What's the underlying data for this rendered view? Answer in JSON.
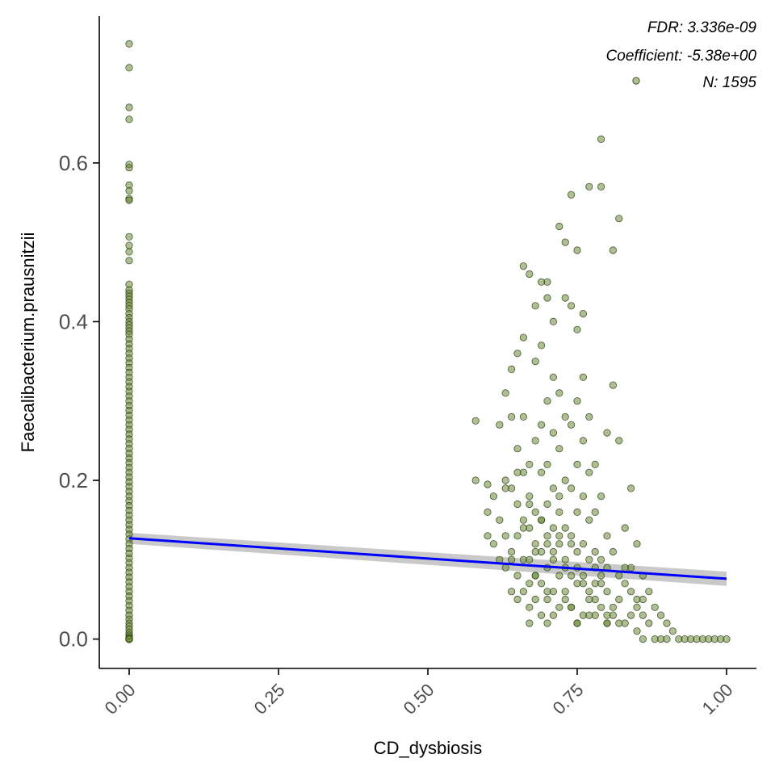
{
  "chart_data": {
    "type": "scatter",
    "xlabel": "CD_dysbiosis",
    "ylabel": "Faecalibacterium.prausnitzii",
    "xlim": [
      -0.05,
      1.05
    ],
    "ylim": [
      -0.037,
      0.785
    ],
    "x_ticks": [
      0.0,
      0.25,
      0.5,
      0.75,
      1.0
    ],
    "x_tick_labels": [
      "0.00",
      "0.25",
      "0.50",
      "0.75",
      "1.00"
    ],
    "y_ticks": [
      0.0,
      0.2,
      0.4,
      0.6
    ],
    "y_tick_labels": [
      "0.0",
      "0.2",
      "0.4",
      "0.6"
    ],
    "grid": false,
    "annotations": [
      "FDR: 3.336e-09",
      "Coefficient: -5.38e+00",
      "N: 1595"
    ],
    "legend_placement": "top-right",
    "regression": {
      "x": [
        0.0,
        1.0
      ],
      "y": [
        0.127,
        0.076
      ],
      "ci_half_width": [
        0.007,
        0.009
      ]
    },
    "colors": {
      "points": "#6b8a3a",
      "point_stroke": "#2e3f12",
      "line": "#0000ff",
      "band": "#bfbfbf"
    },
    "series": [
      {
        "x": [
          0,
          0,
          0,
          0,
          0,
          0,
          0,
          0,
          0,
          0,
          0,
          0,
          0,
          0,
          0,
          0,
          0,
          0,
          0,
          0,
          0,
          0,
          0,
          0,
          0,
          0,
          0,
          0,
          0,
          0,
          0,
          0,
          0,
          0,
          0,
          0,
          0,
          0,
          0,
          0,
          0,
          0,
          0,
          0,
          0,
          0,
          0,
          0,
          0,
          0,
          0,
          0,
          0,
          0,
          0,
          0,
          0,
          0,
          0,
          0,
          0,
          0,
          0,
          0,
          0,
          0,
          0,
          0,
          0,
          0,
          0,
          0,
          0,
          0,
          0,
          0,
          0,
          0,
          0,
          0,
          0,
          0,
          0,
          0,
          0,
          0,
          0,
          0,
          0,
          0,
          0,
          0,
          0,
          0,
          0,
          0,
          0,
          0,
          0,
          0,
          0,
          0,
          0,
          0,
          0,
          0,
          0,
          0,
          0,
          0,
          0,
          0,
          0,
          0,
          0,
          0,
          0,
          0,
          0,
          0,
          0.58,
          0.58,
          0.6,
          0.6,
          0.6,
          0.61,
          0.61,
          0.62,
          0.62,
          0.62,
          0.63,
          0.63,
          0.63,
          0.63,
          0.64,
          0.64,
          0.64,
          0.64,
          0.64,
          0.65,
          0.65,
          0.65,
          0.65,
          0.65,
          0.65,
          0.66,
          0.66,
          0.66,
          0.66,
          0.66,
          0.66,
          0.66,
          0.67,
          0.67,
          0.67,
          0.67,
          0.67,
          0.67,
          0.67,
          0.67,
          0.68,
          0.68,
          0.68,
          0.68,
          0.68,
          0.68,
          0.68,
          0.69,
          0.69,
          0.69,
          0.69,
          0.69,
          0.69,
          0.69,
          0.69,
          0.7,
          0.7,
          0.7,
          0.7,
          0.7,
          0.7,
          0.7,
          0.7,
          0.7,
          0.71,
          0.71,
          0.71,
          0.71,
          0.71,
          0.71,
          0.71,
          0.71,
          0.72,
          0.72,
          0.72,
          0.72,
          0.72,
          0.72,
          0.72,
          0.73,
          0.73,
          0.73,
          0.73,
          0.73,
          0.73,
          0.73,
          0.74,
          0.74,
          0.74,
          0.74,
          0.74,
          0.74,
          0.74,
          0.75,
          0.75,
          0.75,
          0.75,
          0.75,
          0.75,
          0.75,
          0.75,
          0.76,
          0.76,
          0.76,
          0.76,
          0.76,
          0.76,
          0.76,
          0.77,
          0.77,
          0.77,
          0.77,
          0.77,
          0.77,
          0.78,
          0.78,
          0.78,
          0.78,
          0.78,
          0.79,
          0.79,
          0.79,
          0.79,
          0.79,
          0.8,
          0.8,
          0.8,
          0.8,
          0.8,
          0.81,
          0.81,
          0.81,
          0.81,
          0.82,
          0.82,
          0.82,
          0.82,
          0.83,
          0.83,
          0.83,
          0.84,
          0.84,
          0.84,
          0.85,
          0.85,
          0.85,
          0.86,
          0.86,
          0.86,
          0.87,
          0.87,
          0.88,
          0.88,
          0.89,
          0.89,
          0.9,
          0.9,
          0.91,
          0.92,
          0.93,
          0.94,
          0.95,
          0.96,
          0.97,
          0.98,
          0.99,
          1.0,
          0.7,
          0.75,
          0.79,
          0.82,
          0.68,
          0.73,
          0.77,
          0.66,
          0.71,
          0.74,
          0.83,
          0.78,
          0.69,
          0.76,
          0.72,
          0.8,
          0.64,
          0.67,
          0.79,
          0.74,
          0.84,
          0.7,
          0.75,
          0.63,
          0.81,
          0.86,
          0.68,
          0.72,
          0.77,
          0.65,
          0.73,
          0.78,
          0.8,
          0.85
        ],
        "y": [
          0.75,
          0.72,
          0.67,
          0.655,
          0.598,
          0.594,
          0.572,
          0.565,
          0.555,
          0.553,
          0.507,
          0.496,
          0.488,
          0.477,
          0.447,
          0.44,
          0.436,
          0.432,
          0.428,
          0.424,
          0.42,
          0.416,
          0.41,
          0.405,
          0.4,
          0.396,
          0.392,
          0.388,
          0.384,
          0.378,
          0.372,
          0.366,
          0.36,
          0.354,
          0.348,
          0.342,
          0.336,
          0.33,
          0.324,
          0.318,
          0.312,
          0.306,
          0.3,
          0.294,
          0.288,
          0.282,
          0.276,
          0.27,
          0.264,
          0.258,
          0.252,
          0.246,
          0.24,
          0.234,
          0.228,
          0.222,
          0.216,
          0.21,
          0.204,
          0.198,
          0.192,
          0.186,
          0.18,
          0.174,
          0.168,
          0.162,
          0.156,
          0.15,
          0.144,
          0.138,
          0.132,
          0.126,
          0.12,
          0.114,
          0.108,
          0.102,
          0.096,
          0.09,
          0.084,
          0.078,
          0.072,
          0.066,
          0.06,
          0.054,
          0.048,
          0.042,
          0.036,
          0.03,
          0.025,
          0.02,
          0.016,
          0.012,
          0.008,
          0.005,
          0.003,
          0.001,
          0.0,
          0.0,
          0.0,
          0.0,
          0.0,
          0.0,
          0.0,
          0.0,
          0.0,
          0.0,
          0.0,
          0.0,
          0.0,
          0.0,
          0.0,
          0.0,
          0.0,
          0.0,
          0.0,
          0.0,
          0.0,
          0.0,
          0.0,
          0.0,
          0.275,
          0.2,
          0.195,
          0.16,
          0.13,
          0.18,
          0.12,
          0.27,
          0.15,
          0.1,
          0.31,
          0.2,
          0.13,
          0.09,
          0.34,
          0.28,
          0.19,
          0.11,
          0.06,
          0.36,
          0.24,
          0.17,
          0.13,
          0.08,
          0.05,
          0.47,
          0.38,
          0.28,
          0.21,
          0.15,
          0.1,
          0.06,
          0.46,
          0.22,
          0.18,
          0.14,
          0.1,
          0.07,
          0.04,
          0.02,
          0.42,
          0.35,
          0.25,
          0.16,
          0.12,
          0.08,
          0.05,
          0.45,
          0.37,
          0.27,
          0.21,
          0.15,
          0.11,
          0.07,
          0.03,
          0.45,
          0.43,
          0.3,
          0.22,
          0.17,
          0.13,
          0.09,
          0.06,
          0.02,
          0.4,
          0.33,
          0.26,
          0.19,
          0.14,
          0.1,
          0.06,
          0.03,
          0.52,
          0.31,
          0.24,
          0.18,
          0.12,
          0.08,
          0.04,
          0.5,
          0.43,
          0.28,
          0.2,
          0.14,
          0.09,
          0.05,
          0.56,
          0.42,
          0.27,
          0.19,
          0.13,
          0.08,
          0.04,
          0.49,
          0.39,
          0.3,
          0.22,
          0.16,
          0.11,
          0.07,
          0.02,
          0.41,
          0.33,
          0.25,
          0.18,
          0.12,
          0.08,
          0.03,
          0.57,
          0.28,
          0.21,
          0.15,
          0.1,
          0.05,
          0.22,
          0.16,
          0.11,
          0.07,
          0.03,
          0.63,
          0.57,
          0.18,
          0.1,
          0.04,
          0.26,
          0.13,
          0.09,
          0.06,
          0.02,
          0.49,
          0.32,
          0.11,
          0.03,
          0.53,
          0.25,
          0.08,
          0.02,
          0.14,
          0.07,
          0.02,
          0.19,
          0.09,
          0.03,
          0.12,
          0.05,
          0.01,
          0.08,
          0.03,
          0.0,
          0.06,
          0.02,
          0.04,
          0.0,
          0.03,
          0.0,
          0.02,
          0.0,
          0.01,
          0.0,
          0.0,
          0.0,
          0.0,
          0.0,
          0.0,
          0.0,
          0.0,
          0.0,
          0.12,
          0.09,
          0.07,
          0.05,
          0.08,
          0.1,
          0.06,
          0.14,
          0.11,
          0.04,
          0.09,
          0.05,
          0.15,
          0.07,
          0.13,
          0.03,
          0.1,
          0.17,
          0.08,
          0.12,
          0.06,
          0.05,
          0.02,
          0.19,
          0.04,
          0.05,
          0.11,
          0.16,
          0.03,
          0.21,
          0.06,
          0.09,
          0.02,
          0.04
        ]
      }
    ]
  }
}
